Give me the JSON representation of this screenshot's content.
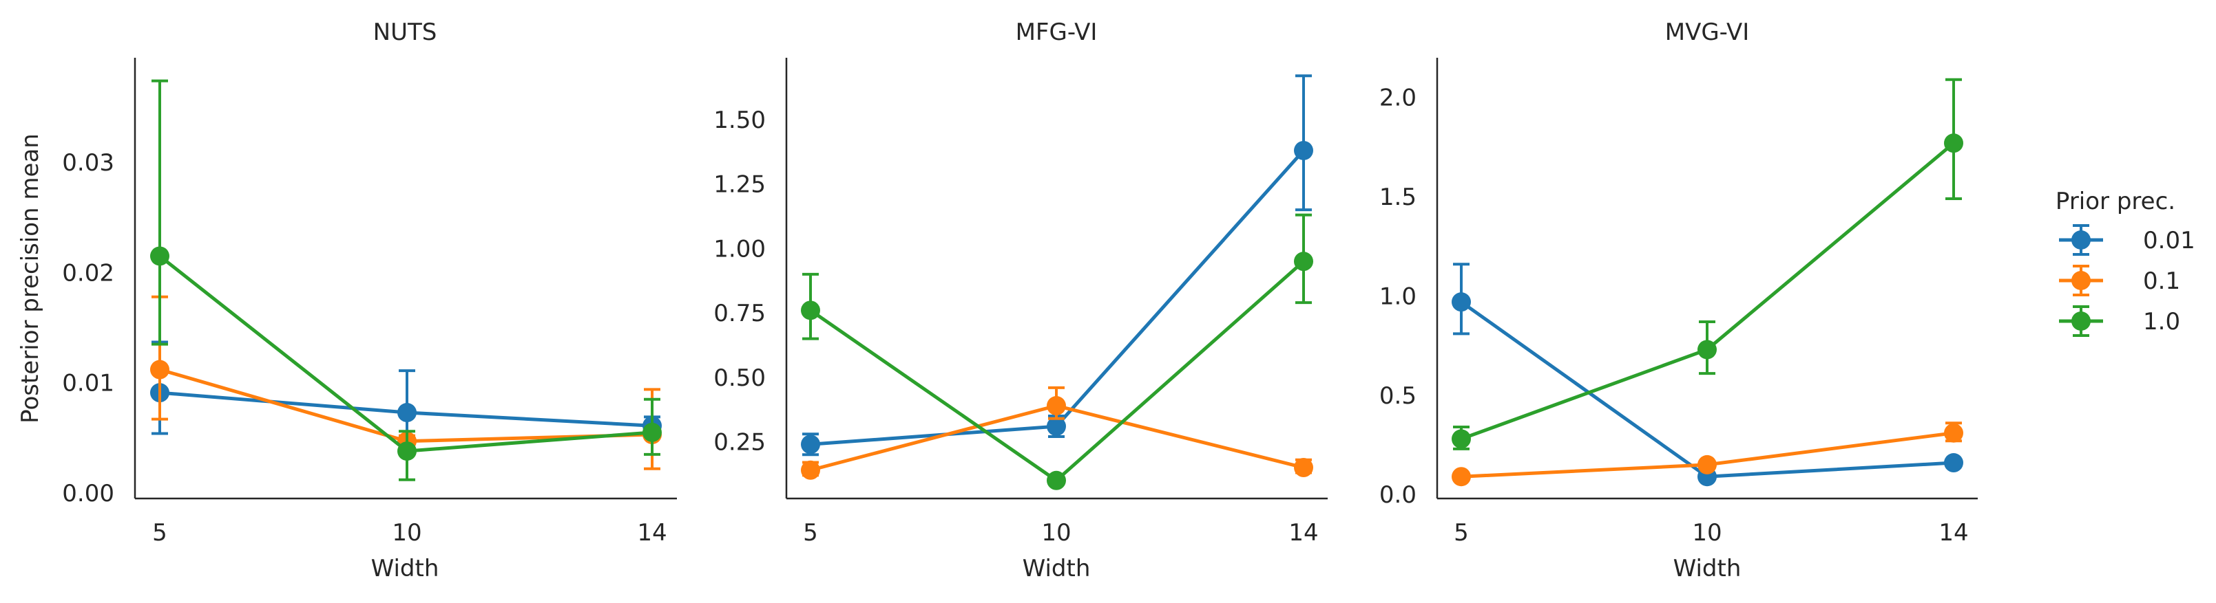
{
  "chart_data": [
    {
      "type": "line",
      "title": "NUTS",
      "xlabel": "Width",
      "ylabel": "Posterior precision mean",
      "categories": [
        "5",
        "10",
        "14"
      ],
      "ylim": [
        -0.0005,
        0.0395
      ],
      "yticks": [
        "0.00",
        "0.01",
        "0.02",
        "0.03"
      ],
      "yticks_values": [
        0.0,
        0.01,
        0.02,
        0.03
      ],
      "series": [
        {
          "name": "0.01",
          "color": "#1f77b4",
          "values": [
            0.0091,
            0.0073,
            0.0061
          ],
          "err_low": [
            0.0054,
            0.0039,
            0.0052
          ],
          "err_high": [
            0.0137,
            0.0111,
            0.0069
          ]
        },
        {
          "name": "0.1",
          "color": "#ff7f0e",
          "values": [
            0.0112,
            0.0047,
            0.0053
          ],
          "err_low": [
            0.0067,
            0.0042,
            0.0022
          ],
          "err_high": [
            0.0178,
            0.0052,
            0.0094
          ]
        },
        {
          "name": "1.0",
          "color": "#2ca02c",
          "values": [
            0.0215,
            0.0038,
            0.0055
          ],
          "err_low": [
            0.0135,
            0.0012,
            0.0035
          ],
          "err_high": [
            0.0374,
            0.0056,
            0.0085
          ]
        }
      ]
    },
    {
      "type": "line",
      "title": "MFG-VI",
      "xlabel": "Width",
      "ylabel": "",
      "categories": [
        "5",
        "10",
        "14"
      ],
      "ylim": [
        0.03,
        1.74
      ],
      "yticks": [
        "0.25",
        "0.50",
        "0.75",
        "1.00",
        "1.25",
        "1.50"
      ],
      "yticks_values": [
        0.25,
        0.5,
        0.75,
        1.0,
        1.25,
        1.5
      ],
      "series": [
        {
          "name": "0.01",
          "color": "#1f77b4",
          "values": [
            0.24,
            0.31,
            1.38
          ],
          "err_low": [
            0.2,
            0.27,
            1.15
          ],
          "err_high": [
            0.28,
            0.35,
            1.67
          ]
        },
        {
          "name": "0.1",
          "color": "#ff7f0e",
          "values": [
            0.14,
            0.39,
            0.15
          ],
          "err_low": [
            0.12,
            0.34,
            0.13
          ],
          "err_high": [
            0.17,
            0.46,
            0.18
          ]
        },
        {
          "name": "1.0",
          "color": "#2ca02c",
          "values": [
            0.76,
            0.1,
            0.95
          ],
          "err_low": [
            0.65,
            0.09,
            0.79
          ],
          "err_high": [
            0.9,
            0.12,
            1.13
          ]
        }
      ]
    },
    {
      "type": "line",
      "title": "MVG-VI",
      "xlabel": "Width",
      "ylabel": "",
      "categories": [
        "5",
        "10",
        "14"
      ],
      "ylim": [
        -0.02,
        2.2
      ],
      "yticks": [
        "0.0",
        "0.5",
        "1.0",
        "1.5",
        "2.0"
      ],
      "yticks_values": [
        0.0,
        0.5,
        1.0,
        1.5,
        2.0
      ],
      "series": [
        {
          "name": "0.01",
          "color": "#1f77b4",
          "values": [
            0.97,
            0.09,
            0.16
          ],
          "err_low": [
            0.81,
            0.08,
            0.15
          ],
          "err_high": [
            1.16,
            0.1,
            0.17
          ]
        },
        {
          "name": "0.1",
          "color": "#ff7f0e",
          "values": [
            0.09,
            0.15,
            0.31
          ],
          "err_low": [
            0.08,
            0.14,
            0.27
          ],
          "err_high": [
            0.1,
            0.16,
            0.36
          ]
        },
        {
          "name": "1.0",
          "color": "#2ca02c",
          "values": [
            0.28,
            0.73,
            1.77
          ],
          "err_low": [
            0.23,
            0.61,
            1.49
          ],
          "err_high": [
            0.34,
            0.87,
            2.09
          ]
        }
      ]
    }
  ],
  "legend": {
    "title": "Prior prec.",
    "placement": "right",
    "entries": [
      {
        "label": "0.01",
        "color": "#1f77b4"
      },
      {
        "label": "0.1",
        "color": "#ff7f0e"
      },
      {
        "label": "1.0",
        "color": "#2ca02c"
      }
    ]
  }
}
